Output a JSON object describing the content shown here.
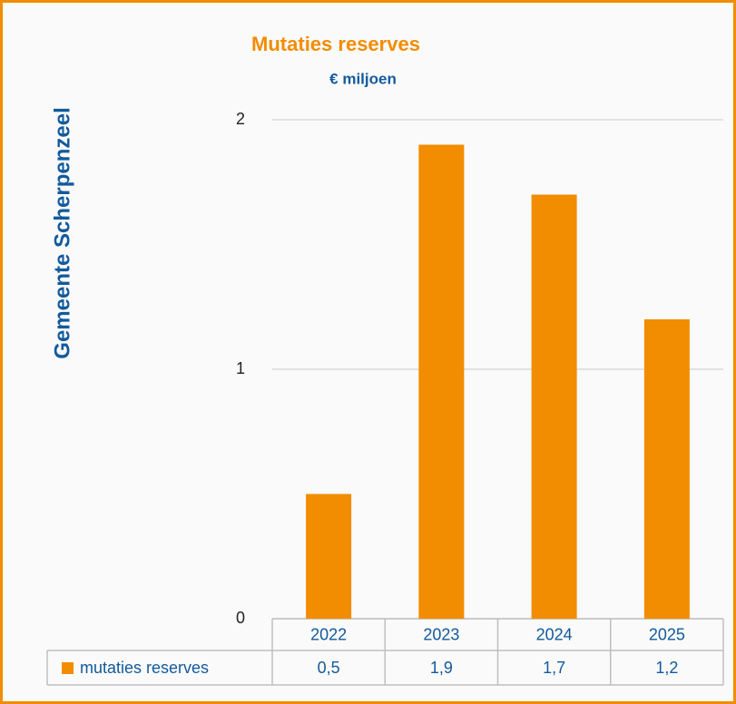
{
  "chart_data": {
    "type": "bar",
    "title": "Mutaties reserves",
    "subtitle": "€ miljoen",
    "y_label": "Gemeente Scherpenzeel",
    "categories": [
      "2022",
      "2023",
      "2024",
      "2025"
    ],
    "series": [
      {
        "name": "mutaties reserves",
        "color": "#f28c00",
        "values": [
          0.5,
          1.9,
          1.7,
          1.2
        ],
        "value_labels": [
          "0,5",
          "1,9",
          "1,7",
          "1,2"
        ]
      }
    ],
    "ylim": [
      0,
      2
    ],
    "yticks": [
      0,
      1,
      2
    ],
    "grid": true
  }
}
